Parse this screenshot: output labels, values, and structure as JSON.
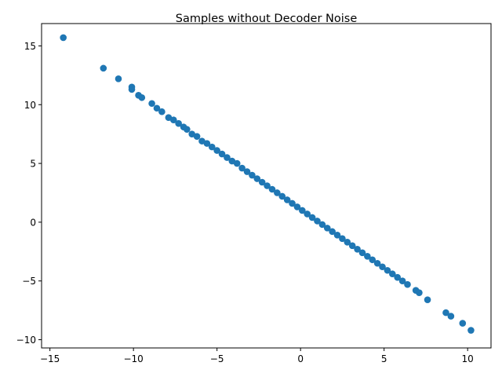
{
  "chart_data": {
    "type": "scatter",
    "title": "Samples without Decoder Noise",
    "xlabel": "",
    "ylabel": "",
    "xlim": [
      -15.5,
      11.4
    ],
    "ylim": [
      -10.7,
      16.9
    ],
    "xticks": [
      -15,
      -10,
      -5,
      0,
      5,
      10
    ],
    "yticks": [
      -10,
      -5,
      0,
      5,
      10,
      15
    ],
    "grid": false,
    "color": "#1f77b4",
    "series": [
      {
        "x": [
          -14.2,
          -11.8,
          -10.9,
          -10.1,
          -10.1,
          -9.7,
          -9.5,
          -8.9,
          -8.6,
          -8.3,
          -7.9,
          -7.6,
          -7.3,
          -7.0,
          -6.8,
          -6.5,
          -6.2,
          -5.9,
          -5.6,
          -5.3,
          -5.0,
          -4.7,
          -4.4,
          -4.1,
          -3.8,
          -3.5,
          -3.2,
          -2.9,
          -2.6,
          -2.3,
          -2.0,
          -1.7,
          -1.4,
          -1.1,
          -0.8,
          -0.5,
          -0.2,
          0.1,
          0.4,
          0.7,
          1.0,
          1.3,
          1.6,
          1.9,
          2.2,
          2.5,
          2.8,
          3.1,
          3.4,
          3.7,
          4.0,
          4.3,
          4.6,
          4.9,
          5.2,
          5.5,
          5.8,
          6.1,
          6.4,
          6.9,
          7.1,
          7.6,
          8.7,
          9.0,
          9.7,
          10.2
        ],
        "y": [
          15.7,
          13.1,
          12.2,
          11.5,
          11.3,
          10.8,
          10.6,
          10.1,
          9.7,
          9.4,
          8.9,
          8.7,
          8.4,
          8.1,
          7.9,
          7.5,
          7.3,
          6.9,
          6.7,
          6.4,
          6.1,
          5.8,
          5.5,
          5.2,
          5.0,
          4.6,
          4.3,
          4.0,
          3.7,
          3.4,
          3.1,
          2.8,
          2.5,
          2.2,
          1.9,
          1.6,
          1.3,
          1.0,
          0.7,
          0.4,
          0.1,
          -0.2,
          -0.5,
          -0.8,
          -1.1,
          -1.4,
          -1.7,
          -2.0,
          -2.3,
          -2.6,
          -2.9,
          -3.2,
          -3.5,
          -3.8,
          -4.1,
          -4.4,
          -4.7,
          -5.0,
          -5.3,
          -5.8,
          -6.0,
          -6.6,
          -7.7,
          -8.0,
          -8.6,
          -9.2
        ]
      }
    ]
  }
}
